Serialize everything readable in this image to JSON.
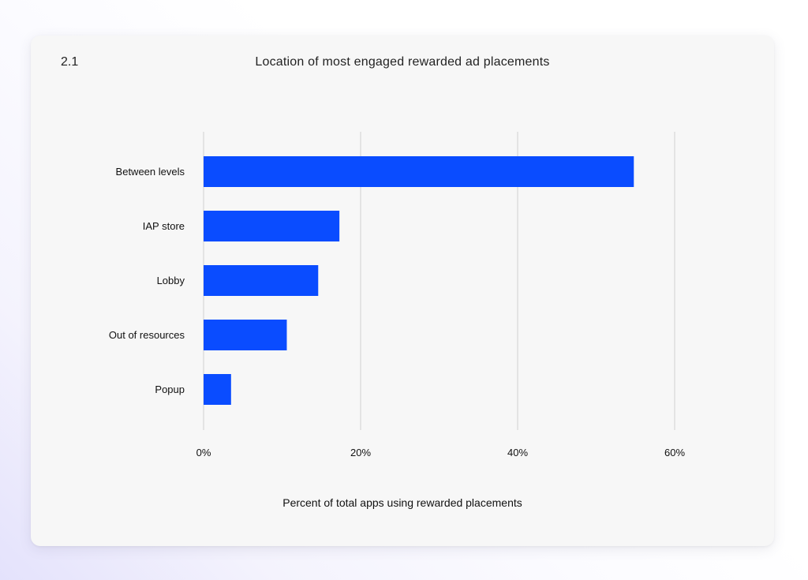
{
  "figure": {
    "number": "2.1"
  },
  "chart_data": {
    "type": "bar",
    "orientation": "horizontal",
    "title": "Location of most engaged rewarded ad placements",
    "categories": [
      "Between levels",
      "IAP store",
      "Lobby",
      "Out of resources",
      "Popup"
    ],
    "values": [
      54.8,
      17.3,
      14.6,
      10.6,
      3.5
    ],
    "xlabel": "Percent of total apps using rewarded placements",
    "ylabel": "",
    "xlim": [
      0,
      60
    ],
    "xticks": [
      0,
      20,
      40,
      60
    ],
    "xtick_labels": [
      "0%",
      "20%",
      "40%",
      "60%"
    ],
    "grid": "vertical",
    "legend": "none",
    "bar_color": "#0a4cff",
    "grid_color": "#d2d2d2"
  }
}
